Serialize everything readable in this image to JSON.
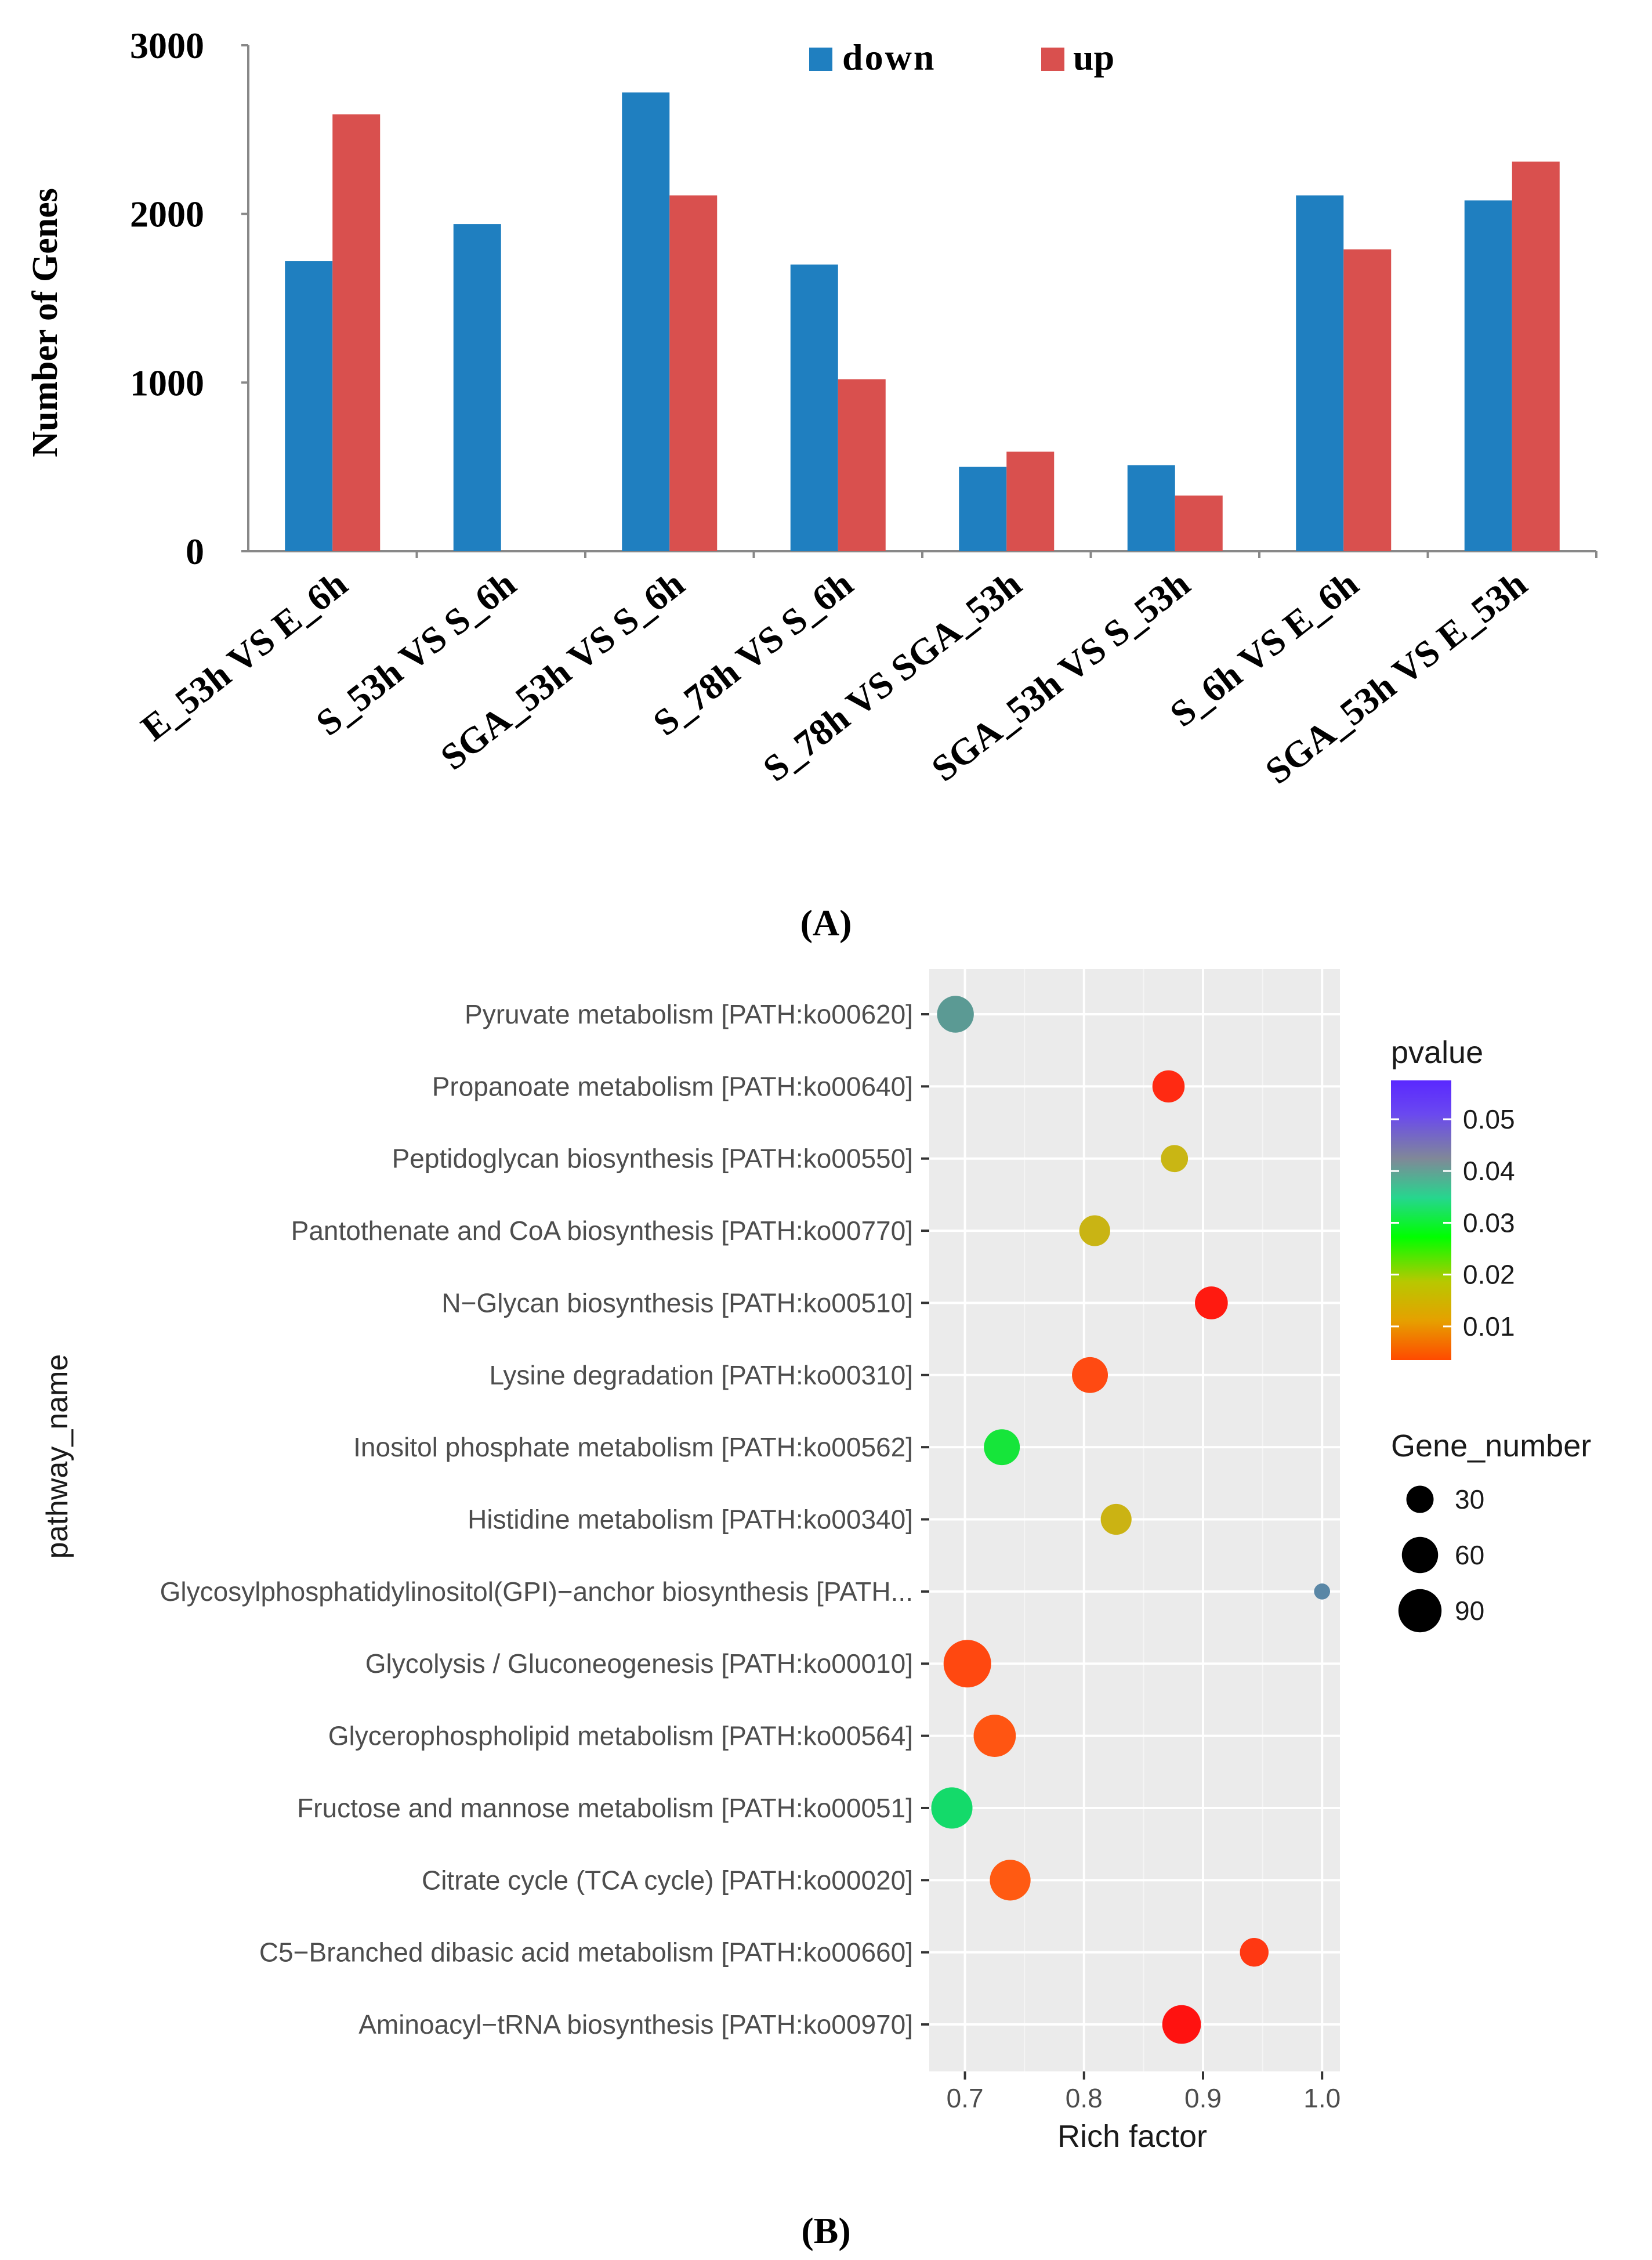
{
  "figure": {
    "panel_a_label": "(A)",
    "panel_b_label": "(B)"
  },
  "chart_data": [
    {
      "type": "bar",
      "title": "",
      "xlabel": "",
      "ylabel": "Number of Genes",
      "ylim": [
        0,
        3000
      ],
      "yticks": [
        "0",
        "1000",
        "2000",
        "3000"
      ],
      "grid": false,
      "legend_position": "top-center",
      "categories": [
        "E_53h VS E_6h",
        "S_53h VS S_6h",
        "SGA_53h VS S_6h",
        "S_78h VS S_6h",
        "S_78h VS SGA_53h",
        "SGA_53h VS S_53h",
        "S_6h VS E_6h",
        "SGA_53h VS E_53h"
      ],
      "series": [
        {
          "name": "down",
          "color": "#1f7fc0",
          "values": [
            1720,
            1940,
            2720,
            1700,
            500,
            510,
            2110,
            2080
          ]
        },
        {
          "name": "up",
          "color": "#d9504e",
          "values": [
            2590,
            0,
            2110,
            1020,
            590,
            330,
            1790,
            2310
          ]
        }
      ]
    },
    {
      "type": "scatter",
      "title": "",
      "xlabel": "Rich factor",
      "ylabel": "pathway_name",
      "xlim": [
        0.67,
        1.015
      ],
      "xticks": [
        "0.7",
        "0.8",
        "0.9",
        "1.0"
      ],
      "grid": true,
      "legend_position": "right",
      "pathways": [
        "Pyruvate metabolism [PATH:ko00620]",
        "Propanoate metabolism [PATH:ko00640]",
        "Peptidoglycan biosynthesis [PATH:ko00550]",
        "Pantothenate and CoA biosynthesis [PATH:ko00770]",
        "N−Glycan biosynthesis [PATH:ko00510]",
        "Lysine degradation [PATH:ko00310]",
        "Inositol phosphate metabolism [PATH:ko00562]",
        "Histidine metabolism [PATH:ko00340]",
        "Glycosylphosphatidylinositol(GPI)−anchor biosynthesis [PATH...",
        "Glycolysis / Gluconeogenesis [PATH:ko00010]",
        "Glycerophospholipid metabolism [PATH:ko00564]",
        "Fructose and mannose metabolism [PATH:ko00051]",
        "Citrate cycle (TCA cycle) [PATH:ko00020]",
        "C5−Branched dibasic acid metabolism [PATH:ko00660]",
        "Aminoacyl−tRNA biosynthesis [PATH:ko00970]"
      ],
      "points": [
        {
          "rich_factor": 0.692,
          "pvalue": 0.04,
          "gene_number": 55,
          "color": "#5b9a94"
        },
        {
          "rich_factor": 0.871,
          "pvalue": 0.003,
          "gene_number": 40,
          "color": "#ff2a12"
        },
        {
          "rich_factor": 0.876,
          "pvalue": 0.018,
          "gene_number": 26,
          "color": "#c9b614"
        },
        {
          "rich_factor": 0.809,
          "pvalue": 0.018,
          "gene_number": 36,
          "color": "#c9b414"
        },
        {
          "rich_factor": 0.907,
          "pvalue": 0.002,
          "gene_number": 42,
          "color": "#ff1a10"
        },
        {
          "rich_factor": 0.805,
          "pvalue": 0.006,
          "gene_number": 52,
          "color": "#ff4a12"
        },
        {
          "rich_factor": 0.731,
          "pvalue": 0.028,
          "gene_number": 52,
          "color": "#16e53a"
        },
        {
          "rich_factor": 0.827,
          "pvalue": 0.017,
          "gene_number": 36,
          "color": "#cbb313"
        },
        {
          "rich_factor": 1.0,
          "pvalue": 0.043,
          "gene_number": 6,
          "color": "#5a87a6"
        },
        {
          "rich_factor": 0.702,
          "pvalue": 0.007,
          "gene_number": 100,
          "color": "#ff4810"
        },
        {
          "rich_factor": 0.725,
          "pvalue": 0.008,
          "gene_number": 76,
          "color": "#ff5512"
        },
        {
          "rich_factor": 0.689,
          "pvalue": 0.031,
          "gene_number": 72,
          "color": "#14da6a"
        },
        {
          "rich_factor": 0.738,
          "pvalue": 0.008,
          "gene_number": 70,
          "color": "#ff5a12"
        },
        {
          "rich_factor": 0.943,
          "pvalue": 0.004,
          "gene_number": 30,
          "color": "#ff3812"
        },
        {
          "rich_factor": 0.882,
          "pvalue": 0.002,
          "gene_number": 62,
          "color": "#ff1210"
        }
      ],
      "color_legend": {
        "title": "pvalue",
        "ticks": [
          "0.05",
          "0.04",
          "0.03",
          "0.02",
          "0.01"
        ],
        "tick_values": [
          0.05,
          0.04,
          0.03,
          0.02,
          0.01
        ],
        "range": [
          0.0035,
          0.0575
        ],
        "colors": [
          "#ff4a00",
          "#e6a000",
          "#b8c800",
          "#00ff00",
          "#26d68e",
          "#808898",
          "#6a48f0",
          "#5a28ff"
        ]
      },
      "size_legend": {
        "title": "Gene_number",
        "labels": [
          "30",
          "60",
          "90"
        ],
        "values": [
          30,
          60,
          90
        ]
      }
    }
  ]
}
